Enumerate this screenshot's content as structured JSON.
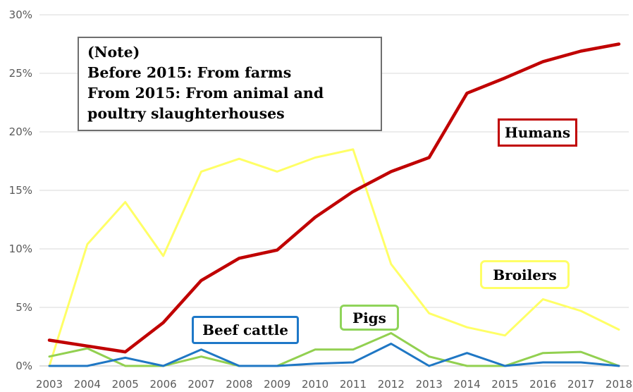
{
  "chart_data": {
    "type": "line",
    "title": "",
    "xlabel": "",
    "ylabel": "",
    "x": [
      "2003",
      "2004",
      "2005",
      "2006",
      "2007",
      "2008",
      "2009",
      "2010",
      "2011",
      "2012",
      "2013",
      "2014",
      "2015",
      "2016",
      "2017",
      "2018"
    ],
    "y_ticks": [
      "0%",
      "5%",
      "10%",
      "15%",
      "20%",
      "25%",
      "30%"
    ],
    "ylim": [
      0,
      30
    ],
    "grid": "horizontal",
    "series": [
      {
        "name": "Humans",
        "color": "#c00000",
        "values": [
          2.2,
          1.7,
          1.2,
          3.7,
          7.3,
          9.2,
          9.9,
          12.7,
          14.9,
          16.6,
          17.8,
          23.3,
          24.6,
          26.0,
          26.9,
          27.5
        ]
      },
      {
        "name": "Broilers",
        "color": "#ffff66",
        "values": [
          0.0,
          10.4,
          14.0,
          9.4,
          16.6,
          17.7,
          16.6,
          17.8,
          18.5,
          8.7,
          4.5,
          3.3,
          2.6,
          5.7,
          4.7,
          3.1
        ]
      },
      {
        "name": "Pigs",
        "color": "#92d050",
        "values": [
          0.8,
          1.5,
          0.0,
          0.0,
          0.8,
          0.0,
          0.0,
          1.4,
          1.4,
          2.8,
          0.8,
          0.0,
          0.0,
          1.1,
          1.2,
          0.0
        ]
      },
      {
        "name": "Beef cattle",
        "color": "#1f77c4",
        "values": [
          0.0,
          0.0,
          0.7,
          0.0,
          1.4,
          0.0,
          0.0,
          0.2,
          0.3,
          1.9,
          0.0,
          1.1,
          0.0,
          0.3,
          0.3,
          0.0
        ]
      }
    ]
  },
  "note": {
    "line1": "(Note)",
    "line2": "Before 2015: From farms",
    "line3": "From 2015: From animal and",
    "line4": "poultry slaughterhouses"
  },
  "labels": {
    "humans": "Humans",
    "broilers": "Broilers",
    "pigs": "Pigs",
    "beef": "Beef cattle"
  }
}
